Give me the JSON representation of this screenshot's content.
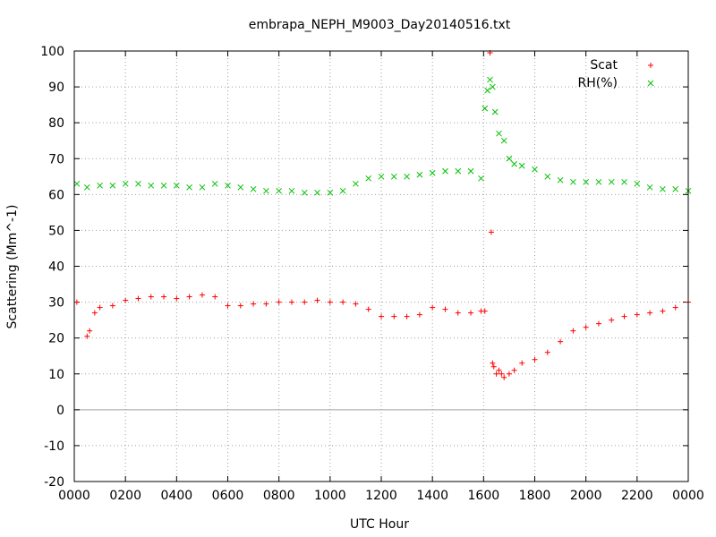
{
  "chart_data": {
    "type": "scatter",
    "title": "embrapa_NEPH_M9003_Day20140516.txt",
    "xlabel": "UTC Hour",
    "ylabel": "Scattering (Mm^-1)",
    "xlim": [
      0,
      24
    ],
    "ylim": [
      -20,
      100
    ],
    "grid": true,
    "legend_position": "top-right",
    "x_ticks": [
      0,
      2,
      4,
      6,
      8,
      10,
      12,
      14,
      16,
      18,
      20,
      22,
      24
    ],
    "x_tick_labels": [
      "0000",
      "0200",
      "0400",
      "0600",
      "0800",
      "1000",
      "1200",
      "1400",
      "1600",
      "1800",
      "2000",
      "2200",
      "0000"
    ],
    "y_ticks": [
      -20,
      -10,
      0,
      10,
      20,
      30,
      40,
      50,
      60,
      70,
      80,
      90,
      100
    ],
    "y_tick_labels": [
      "-20",
      "-10",
      "0",
      "10",
      "20",
      "30",
      "40",
      "50",
      "60",
      "70",
      "80",
      "90",
      "100"
    ],
    "series": [
      {
        "name": "Scat",
        "marker": "+",
        "color": "#ff0000",
        "x": [
          0.1,
          0.5,
          0.6,
          0.8,
          1,
          1.5,
          2,
          2.5,
          3,
          3.5,
          4,
          4.5,
          5,
          5.5,
          6,
          6.5,
          7,
          7.5,
          8,
          8.5,
          9,
          9.5,
          10,
          10.5,
          11,
          11.5,
          12,
          12.5,
          13,
          13.5,
          14,
          14.5,
          15,
          15.5,
          15.9,
          16.05,
          16.25,
          16.3,
          16.35,
          16.4,
          16.5,
          16.6,
          16.7,
          16.8,
          17,
          17.2,
          17.5,
          18,
          18.5,
          19,
          19.5,
          20,
          20.5,
          21,
          21.5,
          22,
          22.5,
          23,
          23.5,
          24
        ],
        "y": [
          30,
          20.5,
          22,
          27,
          28.5,
          29,
          30.5,
          31,
          31.5,
          31.5,
          31,
          31.5,
          32,
          31.5,
          29,
          29,
          29.5,
          29.5,
          30,
          30,
          30,
          30.5,
          30,
          30,
          29.5,
          28,
          26,
          26,
          26,
          26.5,
          28.5,
          28,
          27,
          27,
          27.5,
          27.5,
          99.5,
          49.5,
          13,
          12,
          10,
          11,
          10,
          9,
          10,
          11,
          13,
          14,
          16,
          19,
          22,
          23,
          24,
          25,
          26,
          26.5,
          27,
          27.5,
          28.5,
          30
        ]
      },
      {
        "name": "RH(%)",
        "marker": "x",
        "color": "#00c000",
        "x": [
          0.1,
          0.5,
          1,
          1.5,
          2,
          2.5,
          3,
          3.5,
          4,
          4.5,
          5,
          5.5,
          6,
          6.5,
          7,
          7.5,
          8,
          8.5,
          9,
          9.5,
          10,
          10.5,
          11,
          11.5,
          12,
          12.5,
          13,
          13.5,
          14,
          14.5,
          15,
          15.5,
          15.9,
          16.05,
          16.15,
          16.25,
          16.35,
          16.45,
          16.6,
          16.8,
          17,
          17.2,
          17.5,
          18,
          18.5,
          19,
          19.5,
          20,
          20.5,
          21,
          21.5,
          22,
          22.5,
          23,
          23.5,
          24
        ],
        "y": [
          63,
          62,
          62.5,
          62.5,
          63,
          63,
          62.5,
          62.5,
          62.5,
          62,
          62,
          63,
          62.5,
          62,
          61.5,
          61,
          61,
          61,
          60.5,
          60.5,
          60.5,
          61,
          63,
          64.5,
          65,
          65,
          65,
          65.5,
          66,
          66.5,
          66.5,
          66.5,
          64.5,
          84,
          89,
          92,
          90,
          83,
          77,
          75,
          70,
          68.5,
          68,
          67,
          65,
          64,
          63.5,
          63.5,
          63.5,
          63.5,
          63.5,
          63,
          62,
          61.5,
          61.5,
          61
        ]
      }
    ]
  }
}
